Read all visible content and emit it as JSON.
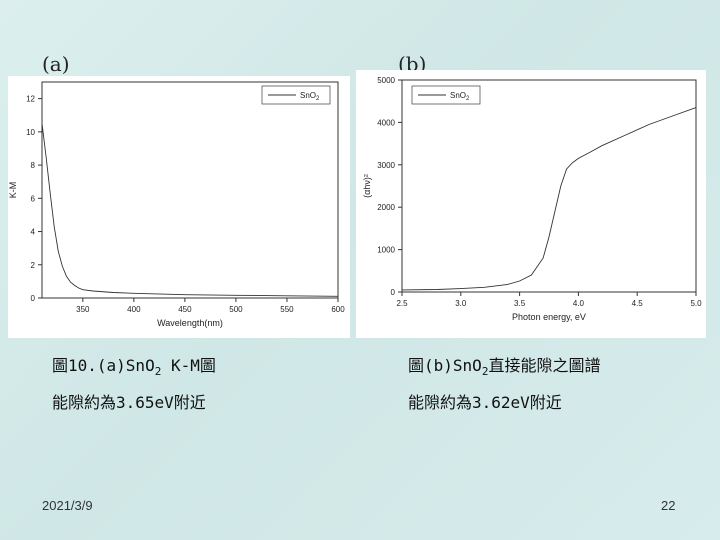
{
  "slide": {
    "label_a": "(a)",
    "label_b": "(b)",
    "caption_a_line1_pre": "圖10.(a)SnO",
    "caption_a_sub": "2",
    "caption_a_line1_post": " K-M圖",
    "caption_a_line2": "能隙約為3.65eV附近",
    "caption_b_line1_pre": "圖(b)SnO",
    "caption_b_sub": "2",
    "caption_b_line1_post": "直接能隙之圖譜",
    "caption_b_line2": "能隙約為3.62eV附近",
    "date": "2021/3/9",
    "page_number": "22"
  },
  "chart_data": [
    {
      "type": "line",
      "xlabel": "Wavelength(nm)",
      "ylabel": "K-M",
      "xlim": [
        310,
        600
      ],
      "ylim": [
        0,
        13
      ],
      "xticks": [
        350,
        400,
        450,
        500,
        550,
        600
      ],
      "yticks": [
        0,
        2,
        4,
        6,
        8,
        10,
        12
      ],
      "legend_position": "top-right",
      "series": [
        {
          "name": "SnO2",
          "color": "#333333",
          "x": [
            310,
            314,
            318,
            322,
            326,
            330,
            334,
            338,
            342,
            346,
            350,
            360,
            380,
            400,
            450,
            500,
            550,
            600
          ],
          "y": [
            10.5,
            8.5,
            6.3,
            4.3,
            2.8,
            1.9,
            1.3,
            0.95,
            0.75,
            0.6,
            0.5,
            0.42,
            0.33,
            0.28,
            0.2,
            0.16,
            0.13,
            0.1
          ]
        }
      ]
    },
    {
      "type": "line",
      "xlabel": "Photon energy, eV",
      "ylabel": "(αhν)²",
      "xlim": [
        2.5,
        5.0
      ],
      "ylim": [
        0,
        5000
      ],
      "xticks": [
        2.5,
        3.0,
        3.5,
        4.0,
        4.5,
        5.0
      ],
      "yticks": [
        0,
        1000,
        2000,
        3000,
        4000,
        5000
      ],
      "legend_position": "top-left",
      "series": [
        {
          "name": "SnO2",
          "color": "#333333",
          "x": [
            2.5,
            2.8,
            3.0,
            3.2,
            3.4,
            3.5,
            3.6,
            3.7,
            3.75,
            3.8,
            3.85,
            3.9,
            3.95,
            4.0,
            4.1,
            4.2,
            4.4,
            4.6,
            4.8,
            5.0
          ],
          "y": [
            50,
            60,
            80,
            110,
            180,
            260,
            400,
            800,
            1300,
            1900,
            2500,
            2900,
            3050,
            3150,
            3300,
            3450,
            3700,
            3950,
            4150,
            4350
          ]
        }
      ]
    }
  ]
}
